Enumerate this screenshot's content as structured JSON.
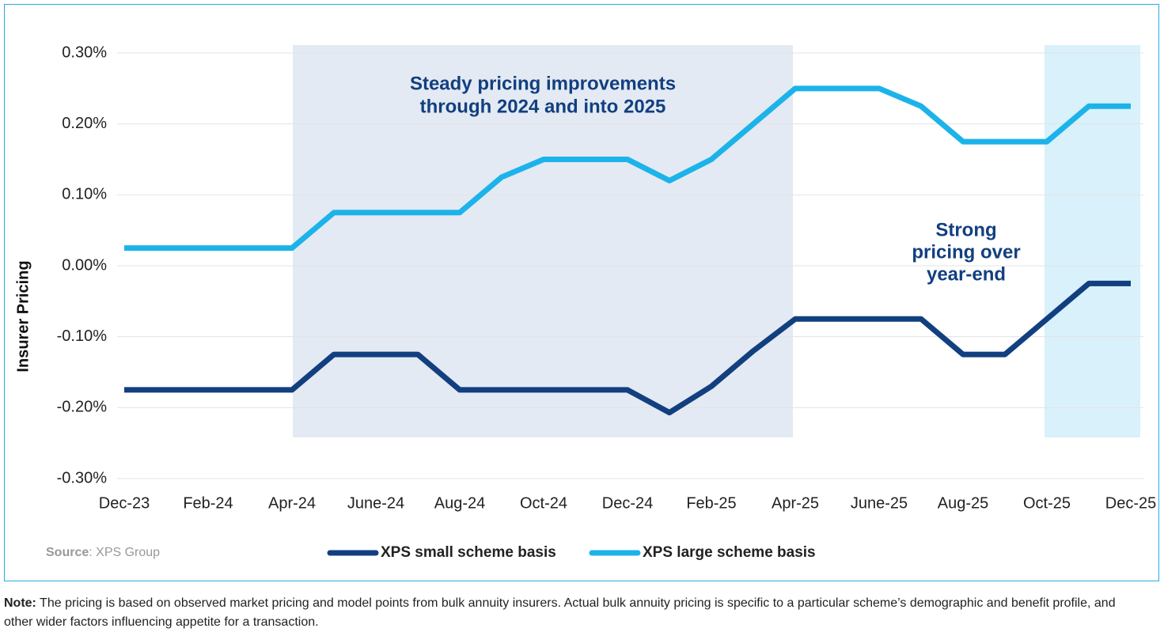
{
  "chart_data": {
    "type": "line",
    "y_label": "Insurer Pricing",
    "categories": [
      "Dec-23",
      null,
      "Feb-24",
      null,
      "Apr-24",
      null,
      "June-24",
      null,
      "Aug-24",
      null,
      "Oct-24",
      null,
      "Dec-24",
      null,
      "Feb-25",
      null,
      "Apr-25",
      null,
      "June-25",
      null,
      "Aug-25",
      null,
      "Oct-25",
      null,
      "Dec-25"
    ],
    "series": [
      {
        "name": "XPS small scheme basis",
        "color": "#123f80",
        "values": [
          -0.175,
          -0.175,
          -0.175,
          -0.175,
          -0.175,
          -0.125,
          -0.125,
          -0.125,
          -0.175,
          -0.175,
          -0.175,
          -0.175,
          -0.175,
          -0.207,
          -0.17,
          -0.12,
          -0.075,
          -0.075,
          -0.075,
          -0.075,
          -0.125,
          -0.125,
          -0.075,
          -0.025,
          -0.025
        ]
      },
      {
        "name": "XPS large scheme basis",
        "color": "#1cb3ea",
        "values": [
          0.025,
          0.025,
          0.025,
          0.025,
          0.025,
          0.075,
          0.075,
          0.075,
          0.075,
          0.125,
          0.15,
          0.15,
          0.15,
          0.12,
          0.15,
          0.2,
          0.25,
          0.25,
          0.25,
          0.225,
          0.175,
          0.175,
          0.175,
          0.225,
          0.225
        ]
      }
    ],
    "ylim": [
      -0.3,
      0.3
    ],
    "yticks": [
      {
        "value": 0.3,
        "label": "0.30%"
      },
      {
        "value": 0.2,
        "label": "0.20%"
      },
      {
        "value": 0.1,
        "label": "0.10%"
      },
      {
        "value": 0,
        "label": "0.00%"
      },
      {
        "value": -0.1,
        "label": "-0.10%"
      },
      {
        "value": -0.2,
        "label": "-0.20%"
      },
      {
        "value": -0.3,
        "label": "-0.30%"
      }
    ],
    "grid": true,
    "annotations": [
      [
        "Steady pricing improvements",
        "through 2024 and into 2025"
      ],
      [
        "Strong",
        "pricing over",
        "year-end"
      ]
    ],
    "source_label": "Source",
    "source_text": ": XPS Group"
  },
  "note": {
    "label": "Note:",
    "text": " The pricing is based on observed market pricing and model points from bulk annuity insurers. Actual bulk annuity pricing is specific to a particular scheme’s demographic and benefit profile, and other wider factors influencing appetite for a transaction."
  }
}
